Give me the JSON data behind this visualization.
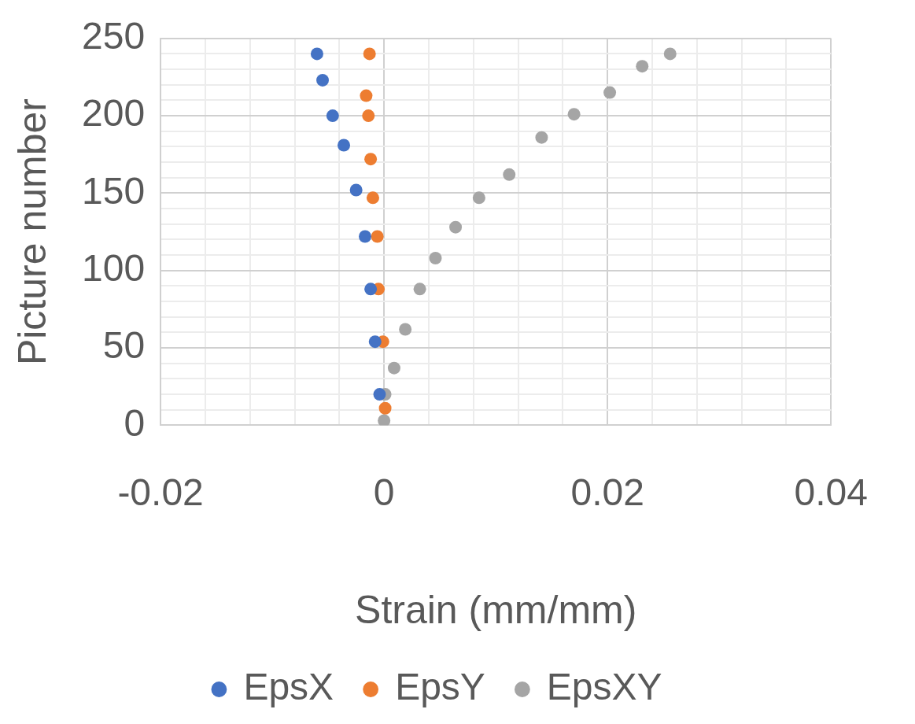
{
  "chart_data": {
    "type": "scatter",
    "xlabel": "Strain (mm/mm)",
    "ylabel": "Picture number",
    "xlim": [
      -0.02,
      0.04
    ],
    "ylim": [
      0,
      250
    ],
    "xticks": [
      {
        "value": -0.02,
        "label": "-0.02"
      },
      {
        "value": -0.016,
        "label": null
      },
      {
        "value": -0.012,
        "label": null
      },
      {
        "value": -0.008,
        "label": null
      },
      {
        "value": -0.004,
        "label": null
      },
      0,
      {
        "value": 0.004,
        "label": null
      },
      {
        "value": 0.008,
        "label": null
      },
      {
        "value": 0.012,
        "label": null
      },
      {
        "value": 0.016,
        "label": null
      },
      {
        "value": 0.02,
        "label": "0.02"
      },
      {
        "value": 0.024,
        "label": null
      },
      {
        "value": 0.028,
        "label": null
      },
      {
        "value": 0.032,
        "label": null
      },
      {
        "value": 0.036,
        "label": null
      },
      {
        "value": 0.04,
        "label": "0.04"
      }
    ],
    "yticks": [
      0,
      {
        "value": 10,
        "label": null
      },
      {
        "value": 20,
        "label": null
      },
      {
        "value": 30,
        "label": null
      },
      {
        "value": 40,
        "label": null
      },
      50,
      {
        "value": 60,
        "label": null
      },
      {
        "value": 70,
        "label": null
      },
      {
        "value": 80,
        "label": null
      },
      {
        "value": 90,
        "label": null
      },
      100,
      {
        "value": 110,
        "label": null
      },
      {
        "value": 120,
        "label": null
      },
      {
        "value": 130,
        "label": null
      },
      {
        "value": 140,
        "label": null
      },
      150,
      {
        "value": 160,
        "label": null
      },
      {
        "value": 170,
        "label": null
      },
      {
        "value": 180,
        "label": null
      },
      {
        "value": 190,
        "label": null
      },
      200,
      {
        "value": 210,
        "label": null
      },
      {
        "value": 220,
        "label": null
      },
      {
        "value": 230,
        "label": null
      },
      {
        "value": 240,
        "label": null
      },
      250
    ],
    "grid": true,
    "legend": "bottom",
    "marker": "circle",
    "series": [
      {
        "name": "EpsX",
        "color": "#4472c4",
        "x": [
          -0.0004,
          -0.0008,
          -0.0012,
          -0.0017,
          -0.0025,
          -0.0036,
          -0.0046,
          -0.0055,
          -0.006
        ],
        "values": [
          20,
          54,
          88,
          122,
          152,
          181,
          200,
          223,
          240
        ]
      },
      {
        "name": "EpsY",
        "color": "#ed7d31",
        "x": [
          0.0001,
          -0.0001,
          -0.0005,
          -0.0006,
          -0.001,
          -0.0012,
          -0.0014,
          -0.0016,
          -0.0013
        ],
        "values": [
          11,
          54,
          88,
          122,
          147,
          172,
          200,
          213,
          240
        ]
      },
      {
        "name": "EpsXY",
        "color": "#a5a5a5",
        "x": [
          0,
          0.0001,
          0.0009,
          0.0019,
          0.0032,
          0.0046,
          0.0064,
          0.0085,
          0.0112,
          0.0141,
          0.017,
          0.0202,
          0.0231,
          0.0256
        ],
        "values": [
          3,
          20,
          37,
          62,
          88,
          108,
          128,
          147,
          162,
          186,
          201,
          215,
          232,
          240
        ]
      }
    ]
  }
}
